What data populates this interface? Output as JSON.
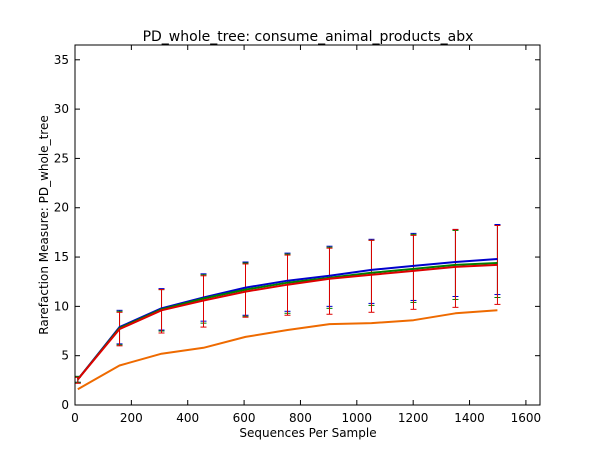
{
  "chart_data": {
    "type": "line",
    "title": "PD_whole_tree: consume_animal_products_abx",
    "xlabel": "Sequences Per Sample",
    "ylabel": "Rarefaction Measure: PD_whole_tree",
    "xlim": [
      0,
      1650
    ],
    "ylim": [
      0,
      36.5
    ],
    "xticks": [
      0,
      200,
      400,
      600,
      800,
      1000,
      1200,
      1400,
      1600
    ],
    "yticks": [
      0,
      5,
      10,
      15,
      20,
      25,
      30,
      35
    ],
    "grid": false,
    "x": [
      10,
      158,
      307,
      456,
      605,
      754,
      903,
      1052,
      1201,
      1350,
      1499
    ],
    "series": [
      {
        "color": "#0000cc",
        "values": [
          2.6,
          7.9,
          9.8,
          10.9,
          11.9,
          12.6,
          13.1,
          13.7,
          14.1,
          14.5,
          14.8
        ],
        "err_low": [
          2.3,
          6.2,
          7.6,
          8.5,
          9.1,
          9.5,
          10.0,
          10.3,
          10.6,
          11.0,
          11.2
        ],
        "err_high": [
          2.9,
          9.6,
          11.8,
          13.3,
          14.5,
          15.4,
          16.1,
          16.8,
          17.4,
          17.8,
          18.3
        ]
      },
      {
        "color": "#008000",
        "values": [
          2.6,
          7.8,
          9.7,
          10.8,
          11.7,
          12.4,
          12.9,
          13.4,
          13.8,
          14.2,
          14.4
        ],
        "err_low": [
          2.3,
          6.1,
          7.5,
          8.3,
          9.0,
          9.3,
          9.8,
          10.1,
          10.4,
          10.7,
          10.9
        ],
        "err_high": [
          2.9,
          9.5,
          11.7,
          13.2,
          14.4,
          15.3,
          16.0,
          16.7,
          17.3,
          17.7,
          18.2
        ]
      },
      {
        "color": "#dd0000",
        "values": [
          2.6,
          7.7,
          9.6,
          10.6,
          11.5,
          12.2,
          12.8,
          13.2,
          13.6,
          14.0,
          14.2
        ],
        "err_low": [
          2.2,
          6.0,
          7.3,
          7.9,
          8.9,
          9.1,
          9.2,
          9.4,
          9.7,
          9.9,
          10.2
        ],
        "err_high": [
          2.8,
          9.4,
          11.7,
          13.1,
          14.3,
          15.2,
          15.9,
          16.7,
          17.2,
          17.8,
          18.2
        ]
      },
      {
        "color": "#ee6a00",
        "values": [
          1.6,
          4.0,
          5.2,
          5.8,
          6.9,
          7.6,
          8.2,
          8.3,
          8.6,
          9.3,
          9.6
        ],
        "err_low": null,
        "err_high": null
      }
    ]
  }
}
